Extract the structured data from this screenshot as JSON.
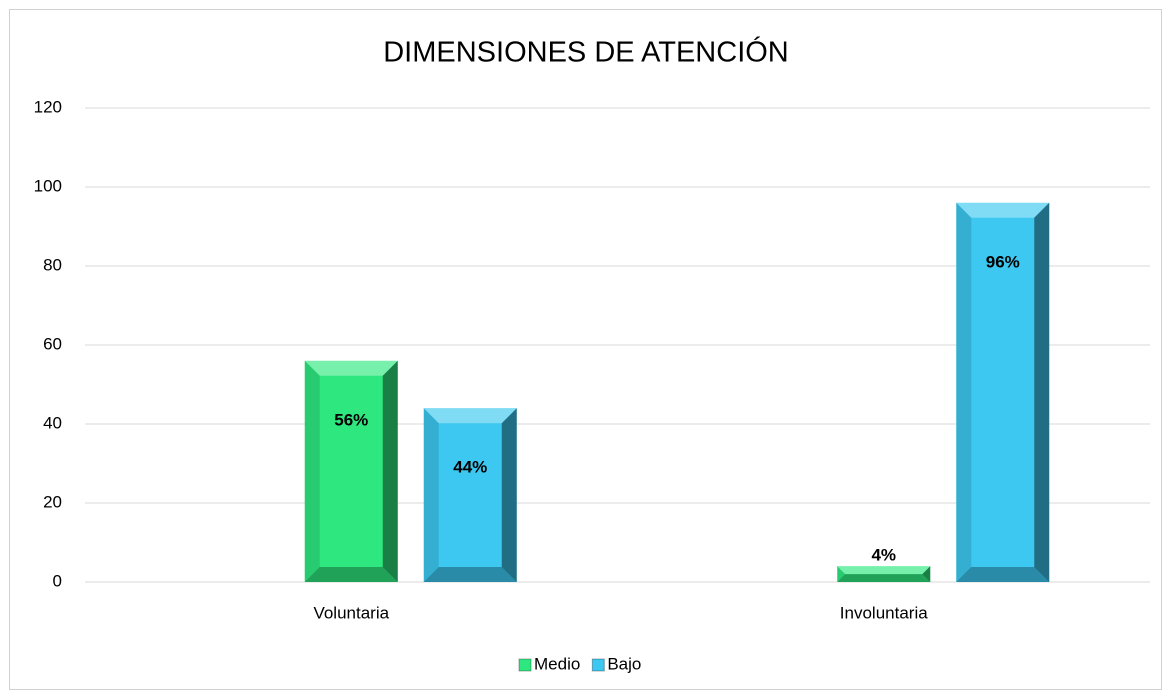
{
  "chart_data": {
    "type": "bar",
    "title": "DIMENSIONES DE ATENCIÓN",
    "categories": [
      "Voluntaria",
      "Involuntaria"
    ],
    "series": [
      {
        "name": "Medio",
        "color": "#2ee87f",
        "values": [
          56,
          4
        ],
        "value_labels": [
          "56%",
          "4%"
        ]
      },
      {
        "name": "Bajo",
        "color": "#3cc8f0",
        "values": [
          44,
          96
        ],
        "value_labels": [
          "44%",
          "96%"
        ]
      }
    ],
    "ylim": [
      0,
      120
    ],
    "yticks": [
      0,
      20,
      40,
      60,
      80,
      100,
      120
    ],
    "grid": true,
    "legend": "bottom"
  }
}
